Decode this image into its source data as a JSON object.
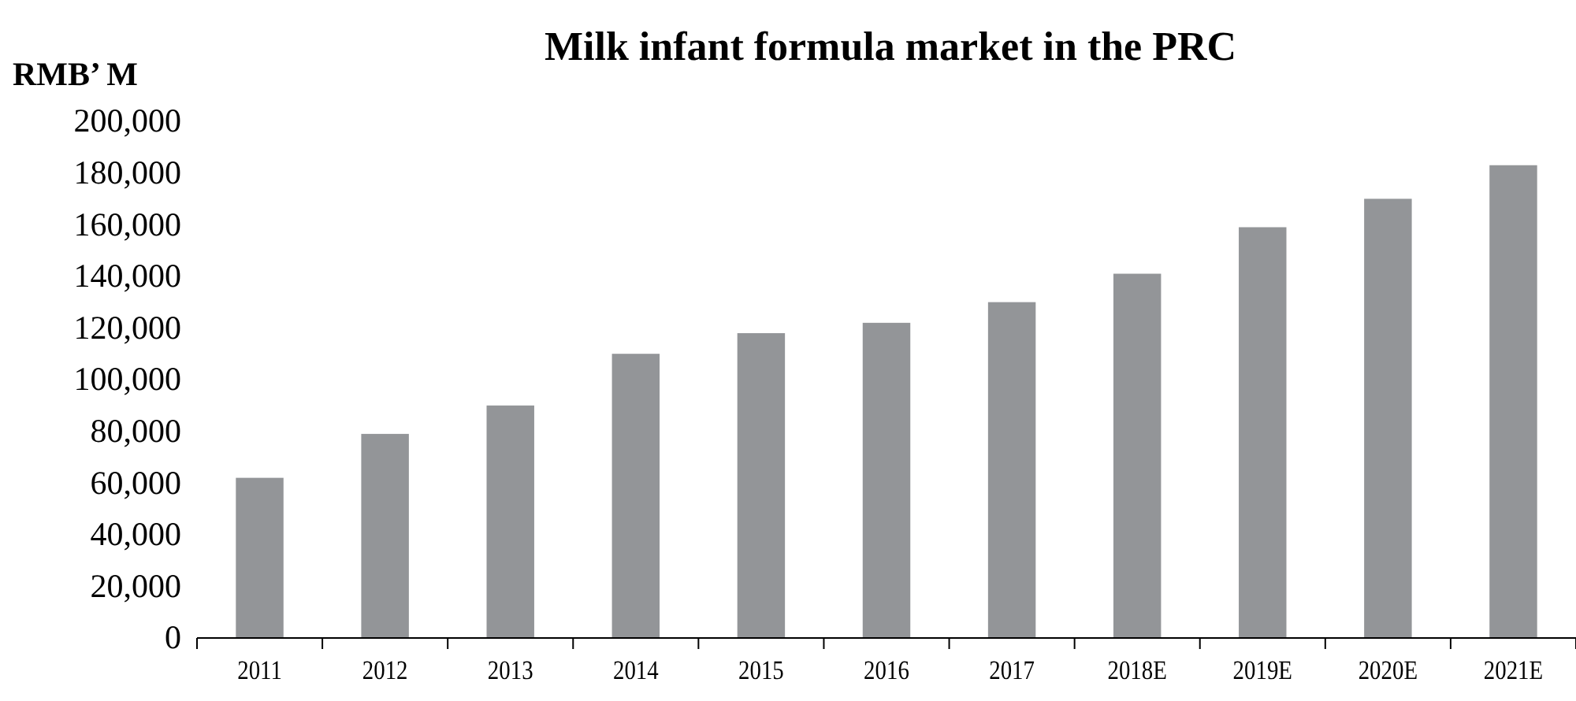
{
  "chart_data": {
    "type": "bar",
    "title": "Milk infant formula market in the PRC",
    "ylabel": "RMB’ M",
    "categories": [
      "2011",
      "2012",
      "2013",
      "2014",
      "2015",
      "2016",
      "2017",
      "2018E",
      "2019E",
      "2020E",
      "2021E"
    ],
    "values": [
      62000,
      79000,
      90000,
      110000,
      118000,
      122000,
      130000,
      141000,
      159000,
      170000,
      183000
    ],
    "color": "#939598",
    "ylim": [
      0,
      200000
    ],
    "yticks": [
      {
        "value": 0,
        "label": "0"
      },
      {
        "value": 20000,
        "label": "20,000"
      },
      {
        "value": 40000,
        "label": "40,000"
      },
      {
        "value": 60000,
        "label": "60,000"
      },
      {
        "value": 80000,
        "label": "80,000"
      },
      {
        "value": 100000,
        "label": "100,000"
      },
      {
        "value": 120000,
        "label": "120,000"
      },
      {
        "value": 140000,
        "label": "140,000"
      },
      {
        "value": 160000,
        "label": "160,000"
      },
      {
        "value": 180000,
        "label": "180,000"
      },
      {
        "value": 200000,
        "label": "200,000"
      }
    ],
    "grid": false
  }
}
